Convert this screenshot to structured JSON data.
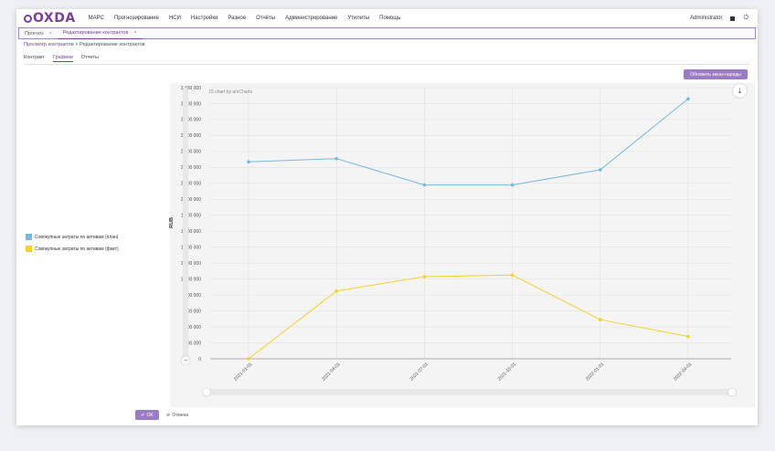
{
  "app": {
    "logo": "OXDA",
    "menu": [
      "МАРС",
      "Прогнозирование",
      "НСИ",
      "Настройки",
      "Разное",
      "Отчёты",
      "Администрирование",
      "Утилиты",
      "Помощь"
    ],
    "user": "Administrator"
  },
  "doc_tabs": [
    {
      "label": "Прогноз",
      "close": "×"
    },
    {
      "label": "Редактирование контрактов",
      "close": "×"
    }
  ],
  "breadcrumb": {
    "link": "Просмотр контрактов",
    "sep": ">",
    "current": "Редактирование контрактов"
  },
  "subtabs": [
    "Контракт",
    "Графики",
    "Отчеты"
  ],
  "buttons": {
    "refresh": "Обновить заказ-наряды",
    "ok": "OK",
    "ok_icon": "✔",
    "cancel": "Отмена",
    "cancel_icon": "⊘"
  },
  "chart_meta": {
    "credit": "JS chart by amCharts"
  },
  "icons": {
    "export": "⤓",
    "zoom_out": "−"
  },
  "chart_data": {
    "type": "line",
    "ylabel": "RUB",
    "ylim": [
      0,
      3400000
    ],
    "ytick_step": 200000,
    "ytick_labels": [
      "0",
      "200 000",
      "400 000",
      "600 000",
      "800 000",
      "1 000 000",
      "1 200 000",
      "1 400 000",
      "1 600 000",
      "1 800 000",
      "2 000 000",
      "2 200 000",
      "2 400 000",
      "2 600 000",
      "2 800 000",
      "3 000 000",
      "3 200 000",
      "3 400 000"
    ],
    "categories": [
      "2021-01-01",
      "2021-04-01",
      "2021-07-01",
      "2021-10-01",
      "2022-01-01",
      "2022-04-01"
    ],
    "series": [
      {
        "name": "Совокупные затраты по активам (план)",
        "color": "#7ab8dc",
        "values": [
          2470000,
          2510000,
          2180000,
          2180000,
          2370000,
          3260000
        ]
      },
      {
        "name": "Совокупные затраты по активам (факт)",
        "color": "#f5d327",
        "values": [
          0,
          850000,
          1030000,
          1050000,
          490000,
          280000
        ]
      }
    ],
    "grid": true,
    "legend": "left"
  }
}
